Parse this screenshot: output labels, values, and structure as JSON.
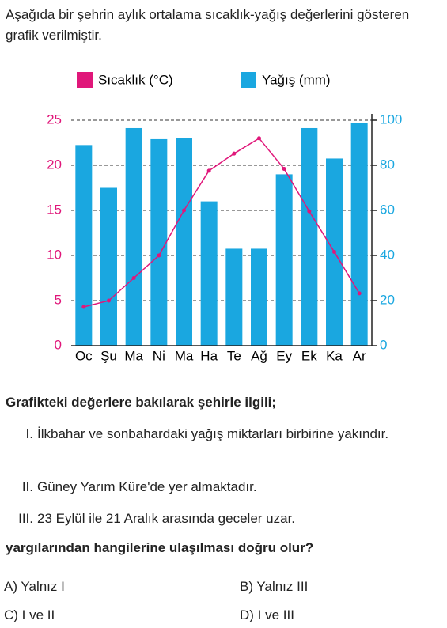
{
  "intro": "Aşağıda bir şehrin aylık ortalama sıcaklık-yağış değerlerini gösteren grafik verilmiştir.",
  "chart_data": {
    "type": "combo",
    "categories": [
      "Oc",
      "Şu",
      "Ma",
      "Ni",
      "Ma",
      "Ha",
      "Te",
      "Ağ",
      "Ey",
      "Ek",
      "Ka",
      "Ar"
    ],
    "series": [
      {
        "name": "Sıcaklık (°C)",
        "type": "line",
        "color": "#e0177a",
        "values": [
          4.3,
          5,
          7.5,
          10,
          15,
          19.4,
          21.3,
          23,
          19.6,
          14.9,
          10.4,
          5.8
        ]
      },
      {
        "name": "Yağış (mm)",
        "type": "bar",
        "axis": "y2",
        "color": "#1aa7e0",
        "values": [
          89,
          70,
          96.5,
          91.6,
          92,
          64,
          43,
          43,
          76,
          96.5,
          83,
          98.6
        ]
      }
    ],
    "ylim": [
      0,
      25
    ],
    "yticks": [
      0,
      5,
      10,
      15,
      20,
      25
    ],
    "y2lim": [
      0,
      100
    ],
    "y2ticks": [
      0,
      20,
      40,
      60,
      80,
      100
    ],
    "grid": true,
    "legend": "top"
  },
  "question": "Grafikteki değerlere bakılarak şehirle ilgili;",
  "statements": [
    {
      "num": "I.",
      "text": "İlkbahar ve sonbahardaki yağış miktarları birbirine yakındır."
    },
    {
      "num": "II.",
      "text": "Güney Yarım Küre'de yer almaktadır."
    },
    {
      "num": "III.",
      "text": "23 Eylül ile 21 Aralık arasında geceler uzar."
    }
  ],
  "prompt": "yargılarından hangilerine ulaşılması doğru olur?",
  "options": [
    "A) Yalnız I",
    "B) Yalnız III",
    "C) I ve II",
    "D) I ve III"
  ]
}
